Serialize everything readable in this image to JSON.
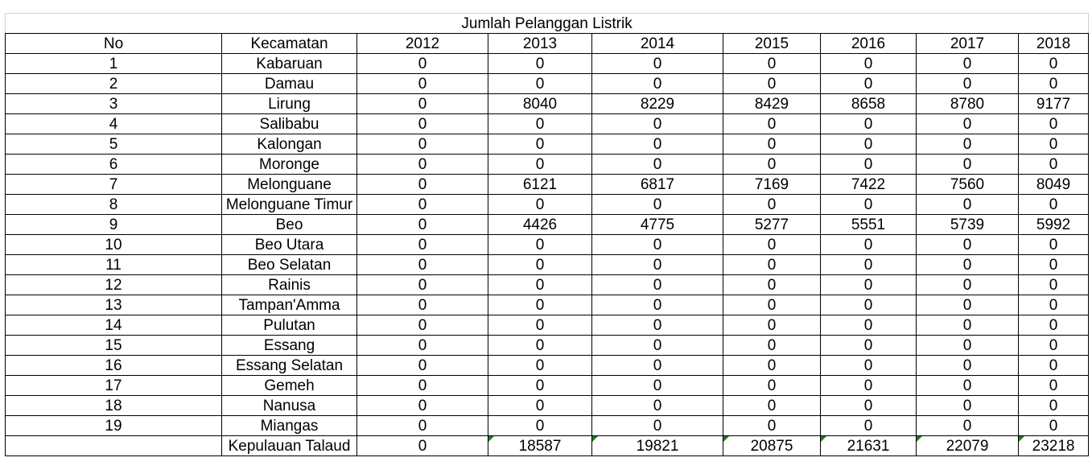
{
  "title": "Jumlah Pelanggan Listrik",
  "headers": [
    "No",
    "Kecamatan",
    "2012",
    "2013",
    "2014",
    "2015",
    "2016",
    "2017",
    "2018"
  ],
  "rows": [
    {
      "no": "1",
      "name": "Kabaruan",
      "values": [
        "0",
        "0",
        "0",
        "0",
        "0",
        "0",
        "0"
      ]
    },
    {
      "no": "2",
      "name": "Damau",
      "values": [
        "0",
        "0",
        "0",
        "0",
        "0",
        "0",
        "0"
      ]
    },
    {
      "no": "3",
      "name": "Lirung",
      "values": [
        "0",
        "8040",
        "8229",
        "8429",
        "8658",
        "8780",
        "9177"
      ]
    },
    {
      "no": "4",
      "name": "Salibabu",
      "values": [
        "0",
        "0",
        "0",
        "0",
        "0",
        "0",
        "0"
      ]
    },
    {
      "no": "5",
      "name": "Kalongan",
      "values": [
        "0",
        "0",
        "0",
        "0",
        "0",
        "0",
        "0"
      ]
    },
    {
      "no": "6",
      "name": "Moronge",
      "values": [
        "0",
        "0",
        "0",
        "0",
        "0",
        "0",
        "0"
      ]
    },
    {
      "no": "7",
      "name": "Melonguane",
      "values": [
        "0",
        "6121",
        "6817",
        "7169",
        "7422",
        "7560",
        "8049"
      ]
    },
    {
      "no": "8",
      "name": "Melonguane Timur",
      "values": [
        "0",
        "0",
        "0",
        "0",
        "0",
        "0",
        "0"
      ]
    },
    {
      "no": "9",
      "name": "Beo",
      "values": [
        "0",
        "4426",
        "4775",
        "5277",
        "5551",
        "5739",
        "5992"
      ]
    },
    {
      "no": "10",
      "name": "Beo Utara",
      "values": [
        "0",
        "0",
        "0",
        "0",
        "0",
        "0",
        "0"
      ]
    },
    {
      "no": "11",
      "name": "Beo Selatan",
      "values": [
        "0",
        "0",
        "0",
        "0",
        "0",
        "0",
        "0"
      ]
    },
    {
      "no": "12",
      "name": "Rainis",
      "values": [
        "0",
        "0",
        "0",
        "0",
        "0",
        "0",
        "0"
      ]
    },
    {
      "no": "13",
      "name": "Tampan'Amma",
      "values": [
        "0",
        "0",
        "0",
        "0",
        "0",
        "0",
        "0"
      ]
    },
    {
      "no": "14",
      "name": "Pulutan",
      "values": [
        "0",
        "0",
        "0",
        "0",
        "0",
        "0",
        "0"
      ]
    },
    {
      "no": "15",
      "name": "Essang",
      "values": [
        "0",
        "0",
        "0",
        "0",
        "0",
        "0",
        "0"
      ]
    },
    {
      "no": "16",
      "name": "Essang Selatan",
      "values": [
        "0",
        "0",
        "0",
        "0",
        "0",
        "0",
        "0"
      ]
    },
    {
      "no": "17",
      "name": "Gemeh",
      "values": [
        "0",
        "0",
        "0",
        "0",
        "0",
        "0",
        "0"
      ]
    },
    {
      "no": "18",
      "name": "Nanusa",
      "values": [
        "0",
        "0",
        "0",
        "0",
        "0",
        "0",
        "0"
      ]
    },
    {
      "no": "19",
      "name": "Miangas",
      "values": [
        "0",
        "0",
        "0",
        "0",
        "0",
        "0",
        "0"
      ]
    }
  ],
  "total": {
    "no": "",
    "name": "Kepulauan Talaud",
    "values": [
      "0",
      "18587",
      "19821",
      "20875",
      "21631",
      "22079",
      "23218"
    ]
  },
  "colors": {
    "grid": "#000000",
    "title_border": "#d0d0d0",
    "error_flag": "#1f7a1f"
  }
}
